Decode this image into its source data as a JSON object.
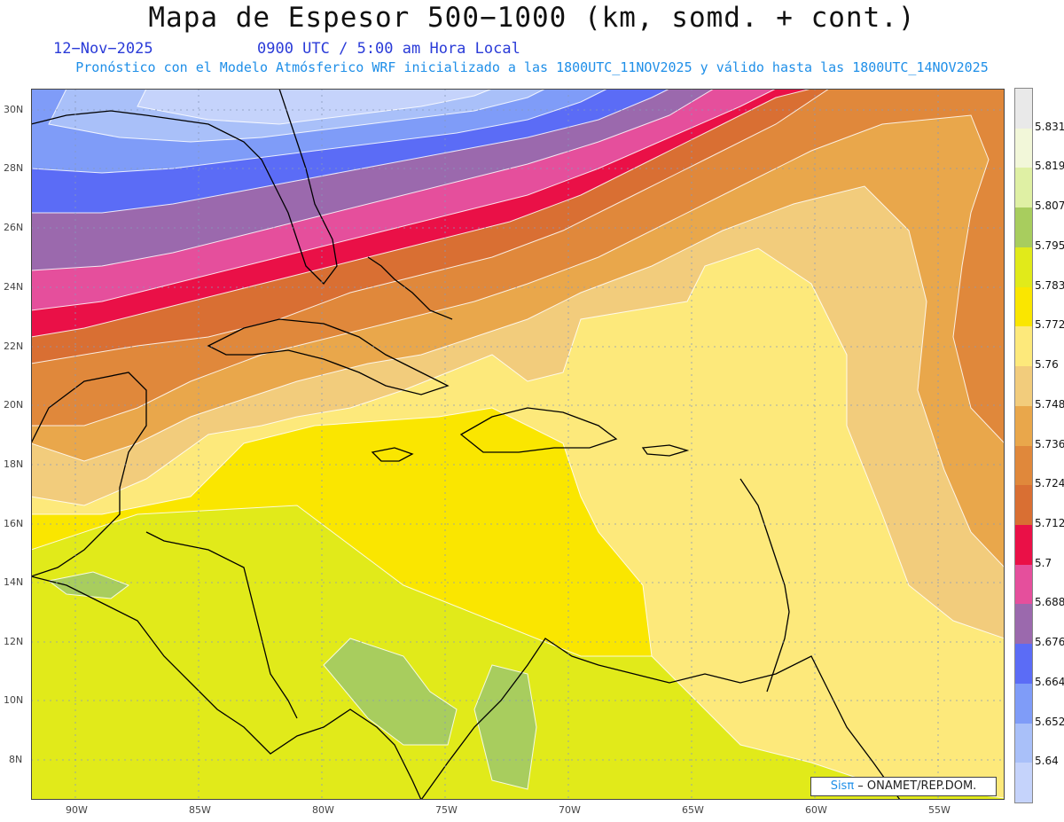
{
  "header": {
    "title": "Mapa de Espesor 500−1000 (km, somd. + cont.)",
    "date": "12−Nov−2025",
    "time": "0900 UTC / 5:00 am Hora Local",
    "model_info": "Pronóstico con el Modelo Atmósferico WRF inicializado a las 1800UTC_11NOV2025 y válido hasta las  1800UTC_14NOV2025"
  },
  "colorbar": {
    "labels": [
      "5.831",
      "5.819",
      "5.807",
      "5.795",
      "5.783",
      "5.772",
      "5.76",
      "5.748",
      "5.736",
      "5.724",
      "5.712",
      "5.7",
      "5.688",
      "5.676",
      "5.664",
      "5.652",
      "5.64"
    ],
    "colors": [
      "#e9e9e9",
      "#f2f7d9",
      "#dff0a4",
      "#a8cd5e",
      "#e1ea1a",
      "#fae600",
      "#fde97b",
      "#f2cc7c",
      "#e9a74b",
      "#e0883b",
      "#d96f33",
      "#ea1047",
      "#e54f9c",
      "#9b69ad",
      "#5b6cf6",
      "#7f9cf8",
      "#a9c0f9",
      "#c5d3fb"
    ]
  },
  "axes": {
    "lat_labels": [
      "30N",
      "28N",
      "26N",
      "24N",
      "22N",
      "20N",
      "18N",
      "16N",
      "14N",
      "12N",
      "10N",
      "8N"
    ],
    "lon_labels": [
      "90W",
      "85W",
      "80W",
      "75W",
      "70W",
      "65W",
      "60W",
      "55W"
    ]
  },
  "credit": {
    "brand": "Sisπ",
    "text": " – ONAMET/REP.DOM."
  }
}
